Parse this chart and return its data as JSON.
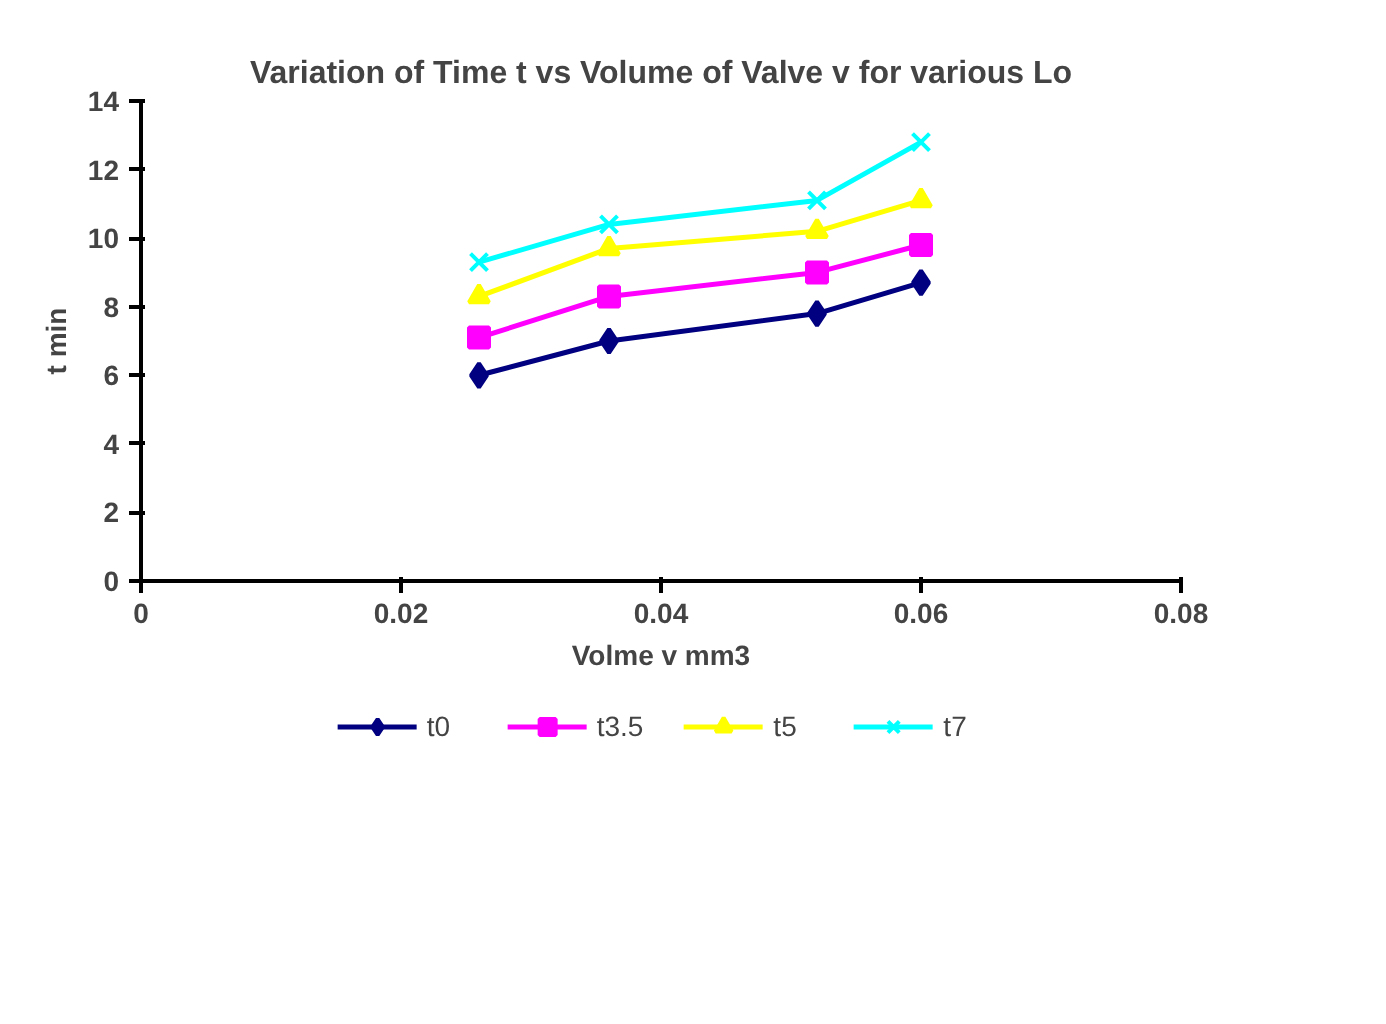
{
  "chart_data": {
    "type": "line",
    "title": "Variation of Time t vs Volume of Valve v for various Lo",
    "xlabel": "Volme v mm3",
    "ylabel": "t min",
    "x": [
      0.026,
      0.036,
      0.052,
      0.06
    ],
    "series": [
      {
        "name": "t0",
        "color": "#000080",
        "marker": "diamond",
        "values": [
          6.0,
          7.0,
          7.8,
          8.7
        ]
      },
      {
        "name": "t3.5",
        "color": "#ff00ff",
        "marker": "square",
        "values": [
          7.1,
          8.3,
          9.0,
          9.8
        ]
      },
      {
        "name": "t5",
        "color": "#ffff00",
        "marker": "triangle",
        "values": [
          8.3,
          9.7,
          10.2,
          11.1
        ]
      },
      {
        "name": "t7",
        "color": "#00ffff",
        "marker": "cross",
        "values": [
          9.3,
          10.4,
          11.1,
          12.8
        ]
      }
    ],
    "xlim": [
      0,
      0.08
    ],
    "xticks": [
      0,
      0.02,
      0.04,
      0.06,
      0.08
    ],
    "ylim": [
      0,
      14
    ],
    "yticks": [
      0,
      2,
      4,
      6,
      8,
      10,
      12,
      14
    ],
    "grid": false,
    "legend": "bottom",
    "line_style": "solid"
  }
}
